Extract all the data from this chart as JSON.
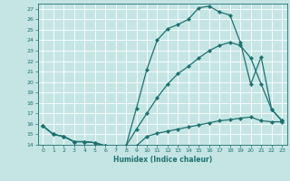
{
  "xlabel": "Humidex (Indice chaleur)",
  "xlim": [
    -0.5,
    23.5
  ],
  "ylim": [
    14,
    27.5
  ],
  "xticks": [
    0,
    1,
    2,
    3,
    4,
    5,
    6,
    7,
    8,
    9,
    10,
    11,
    12,
    13,
    14,
    15,
    16,
    17,
    18,
    19,
    20,
    21,
    22,
    23
  ],
  "yticks": [
    14,
    15,
    16,
    17,
    18,
    19,
    20,
    21,
    22,
    23,
    24,
    25,
    26,
    27
  ],
  "bg_color": "#c5e5e5",
  "line_color": "#1e7070",
  "grid_color": "#ffffff",
  "line1_x": [
    0,
    1,
    2,
    3,
    4,
    5,
    6,
    7,
    8,
    9,
    10,
    11,
    12,
    13,
    14,
    15,
    16,
    17,
    18,
    19,
    20,
    21,
    22,
    23
  ],
  "line1_y": [
    15.8,
    15.0,
    14.8,
    14.3,
    14.3,
    14.2,
    13.9,
    13.85,
    13.9,
    17.5,
    21.2,
    24.0,
    25.1,
    25.5,
    26.0,
    27.1,
    27.25,
    26.7,
    26.4,
    23.8,
    19.8,
    22.4,
    17.4,
    16.3
  ],
  "line2_x": [
    0,
    1,
    2,
    3,
    4,
    5,
    6,
    7,
    8,
    9,
    10,
    11,
    12,
    13,
    14,
    15,
    16,
    17,
    18,
    19,
    20,
    21,
    22,
    23
  ],
  "line2_y": [
    15.8,
    15.0,
    14.8,
    14.3,
    14.3,
    14.2,
    13.9,
    13.85,
    13.9,
    13.9,
    14.8,
    15.1,
    15.3,
    15.5,
    15.7,
    15.9,
    16.1,
    16.3,
    16.4,
    16.55,
    16.65,
    16.3,
    16.2,
    16.2
  ],
  "line3_x": [
    0,
    1,
    2,
    3,
    4,
    5,
    6,
    7,
    8,
    9,
    10,
    11,
    12,
    13,
    14,
    15,
    16,
    17,
    18,
    19,
    20,
    21,
    22,
    23
  ],
  "line3_y": [
    15.8,
    15.0,
    14.8,
    14.3,
    14.3,
    14.2,
    13.9,
    13.85,
    13.9,
    15.5,
    17.0,
    18.5,
    19.8,
    20.8,
    21.5,
    22.3,
    23.0,
    23.5,
    23.8,
    23.5,
    22.3,
    19.8,
    17.4,
    16.3
  ]
}
